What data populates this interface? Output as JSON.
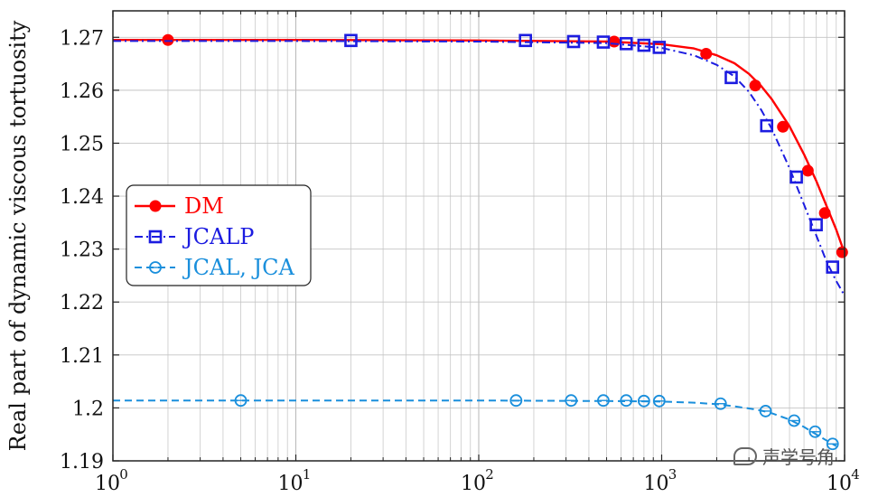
{
  "chart_data": {
    "type": "line",
    "ylabel": "Real part of dynamic viscous tortuosity",
    "xscale": "log",
    "xlim": [
      1,
      10000
    ],
    "ylim": [
      1.19,
      1.275
    ],
    "grid": true,
    "legend_position": "center-left",
    "x_tick_labels": [
      "10",
      "10",
      "10",
      "10",
      "10"
    ],
    "x_tick_exponents": [
      "0",
      "1",
      "2",
      "3",
      "4"
    ],
    "x_tick_values": [
      1,
      10,
      100,
      1000,
      10000
    ],
    "y_tick_labels": [
      "1.19",
      "1.2",
      "1.21",
      "1.22",
      "1.23",
      "1.24",
      "1.25",
      "1.26",
      "1.27"
    ],
    "y_tick_values": [
      1.19,
      1.2,
      1.21,
      1.22,
      1.23,
      1.24,
      1.25,
      1.26,
      1.27
    ],
    "series": [
      {
        "name": "DM",
        "color": "#ff0000",
        "line": "solid",
        "marker": "filled-circle",
        "curve": {
          "x": [
            1,
            10,
            100,
            500,
            1000,
            1500,
            2000,
            2500,
            3000,
            3500,
            4000,
            5000,
            6000,
            7000,
            8000,
            9000,
            10000
          ],
          "y": [
            1.2695,
            1.2695,
            1.2694,
            1.2692,
            1.2687,
            1.2679,
            1.2666,
            1.2651,
            1.2631,
            1.2608,
            1.2583,
            1.2532,
            1.2479,
            1.2429,
            1.238,
            1.2337,
            1.2292
          ]
        },
        "markers": {
          "x": [
            2,
            550,
            1750,
            3250,
            4600,
            6300,
            7800,
            9700
          ],
          "y": [
            1.2695,
            1.2692,
            1.2669,
            1.2609,
            1.2531,
            1.2448,
            1.2368,
            1.2294
          ]
        }
      },
      {
        "name": "JCALP",
        "color": "#1c1ce0",
        "line": "dash-dot",
        "marker": "square",
        "curve": {
          "x": [
            1,
            10,
            100,
            500,
            1000,
            1500,
            2000,
            2500,
            3000,
            3500,
            4000,
            5000,
            6000,
            7000,
            8000,
            9000,
            10000
          ],
          "y": [
            1.2693,
            1.2693,
            1.2692,
            1.2689,
            1.268,
            1.2666,
            1.2648,
            1.2626,
            1.2597,
            1.2563,
            1.2527,
            1.2453,
            1.2384,
            1.2326,
            1.2275,
            1.224,
            1.2212
          ]
        },
        "markers": {
          "x": [
            20,
            180,
            330,
            480,
            640,
            800,
            970,
            2400,
            3750,
            5450,
            7000,
            8600
          ],
          "y": [
            1.2694,
            1.2694,
            1.2692,
            1.2691,
            1.2688,
            1.2685,
            1.2681,
            1.2624,
            1.2533,
            1.2436,
            1.2346,
            1.2266
          ]
        }
      },
      {
        "name": "JCAL, JCA",
        "color": "#1a8fdc",
        "line": "dashed",
        "marker": "open-circle",
        "curve": {
          "x": [
            1,
            10,
            100,
            500,
            1000,
            1500,
            2000,
            2500,
            3000,
            3500,
            4000,
            5000,
            6000,
            7000,
            8000,
            9000
          ],
          "y": [
            1.2014,
            1.2014,
            1.2014,
            1.2013,
            1.2012,
            1.201,
            1.2007,
            1.2003,
            1.1999,
            1.1995,
            1.199,
            1.1978,
            1.1964,
            1.195,
            1.1938,
            1.1928
          ]
        },
        "markers": {
          "x": [
            5,
            160,
            320,
            480,
            640,
            800,
            970,
            2100,
            3700,
            5300,
            6900,
            8600
          ],
          "y": [
            1.2014,
            1.2014,
            1.2014,
            1.2014,
            1.2014,
            1.2013,
            1.2013,
            1.2008,
            1.1994,
            1.1976,
            1.1955,
            1.1932
          ]
        }
      }
    ]
  },
  "watermark": {
    "text": "声学号角"
  }
}
